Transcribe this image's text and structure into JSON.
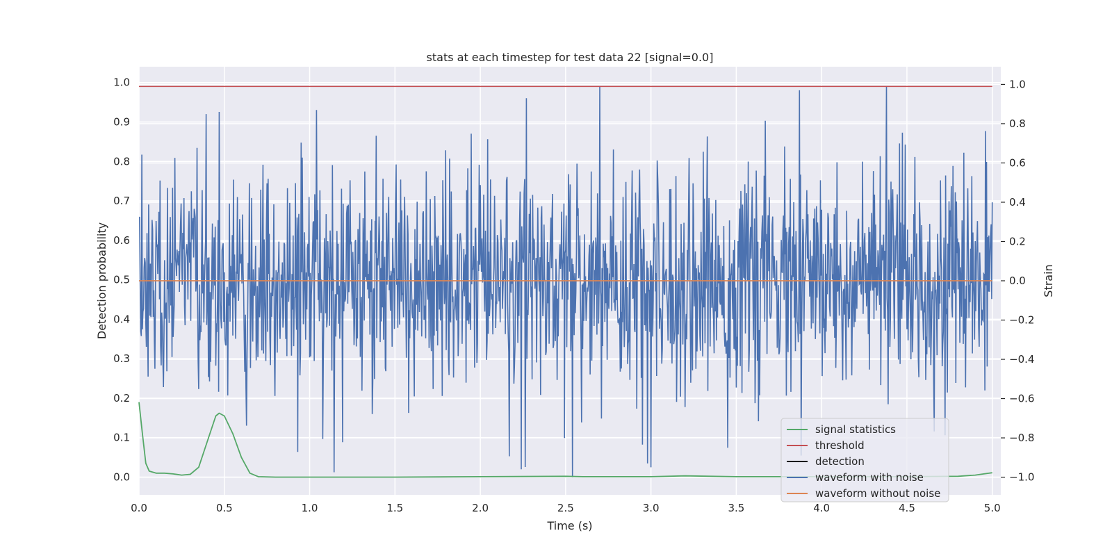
{
  "chart_data": {
    "type": "line",
    "title": "stats at each timestep for test data 22 [signal=0.0]",
    "xlabel": "Time (s)",
    "ylabel_left": "Detection probability",
    "ylabel_right": "Strain",
    "xlim": [
      0.0,
      5.05
    ],
    "ylim_left": [
      -0.045,
      1.04
    ],
    "ylim_right": [
      -1.09,
      1.09
    ],
    "x_ticks": [
      "0.0",
      "0.5",
      "1.0",
      "1.5",
      "2.0",
      "2.5",
      "3.0",
      "3.5",
      "4.0",
      "4.5",
      "5.0"
    ],
    "y_left_ticks": [
      "0.0",
      "0.1",
      "0.2",
      "0.3",
      "0.4",
      "0.5",
      "0.6",
      "0.7",
      "0.8",
      "0.9",
      "1.0"
    ],
    "y_right_ticks": [
      "−1.0",
      "−0.8",
      "−0.6",
      "−0.4",
      "−0.2",
      "0.0",
      "0.2",
      "0.4",
      "0.6",
      "0.8",
      "1.0"
    ],
    "grid": true,
    "legend_position": "lower right",
    "series": [
      {
        "name": "signal statistics",
        "axis": "left",
        "color": "#55a868",
        "x": [
          0.0,
          0.02,
          0.04,
          0.06,
          0.1,
          0.15,
          0.2,
          0.25,
          0.3,
          0.35,
          0.4,
          0.45,
          0.47,
          0.5,
          0.55,
          0.6,
          0.65,
          0.7,
          0.8,
          1.0,
          1.5,
          2.0,
          2.5,
          2.6,
          3.0,
          3.2,
          3.5,
          4.0,
          4.5,
          4.8,
          4.9,
          4.95,
          5.0
        ],
        "y": [
          0.19,
          0.11,
          0.035,
          0.015,
          0.01,
          0.01,
          0.008,
          0.005,
          0.007,
          0.025,
          0.09,
          0.155,
          0.162,
          0.155,
          0.11,
          0.05,
          0.01,
          0.001,
          0.0,
          0.0,
          0.0,
          0.001,
          0.002,
          0.001,
          0.001,
          0.003,
          0.001,
          0.001,
          0.001,
          0.002,
          0.005,
          0.008,
          0.011
        ]
      },
      {
        "name": "threshold",
        "axis": "left",
        "color": "#c44e52",
        "x": [
          0.0,
          5.0
        ],
        "y": [
          0.99,
          0.99
        ]
      },
      {
        "name": "detection",
        "axis": "left",
        "color": "#000000",
        "x": [],
        "y": []
      },
      {
        "name": "waveform with noise",
        "axis": "right",
        "color": "#4c72b0",
        "description_values": {
          "x_range": [
            0.0,
            5.0
          ],
          "typical_range": [
            -0.6,
            0.6
          ],
          "peak_max": 0.99,
          "peak_min": -1.0,
          "peaks": [
            {
              "x": 0.47,
              "y": 0.86
            },
            {
              "x": 1.04,
              "y": 0.87
            },
            {
              "x": 2.27,
              "y": 0.93
            },
            {
              "x": 2.7,
              "y": 0.99
            },
            {
              "x": 3.87,
              "y": 0.97
            },
            {
              "x": 4.38,
              "y": 0.99
            },
            {
              "x": 2.54,
              "y": -1.0
            },
            {
              "x": 2.24,
              "y": -0.96
            },
            {
              "x": 2.98,
              "y": -0.93
            },
            {
              "x": 3.0,
              "y": -0.95
            },
            {
              "x": 3.45,
              "y": -0.85
            },
            {
              "x": 3.88,
              "y": -0.89
            }
          ]
        }
      },
      {
        "name": "waveform without noise",
        "axis": "right",
        "color": "#dd8452",
        "x": [
          0.0,
          5.0
        ],
        "y": [
          0.0,
          0.0
        ]
      }
    ]
  }
}
